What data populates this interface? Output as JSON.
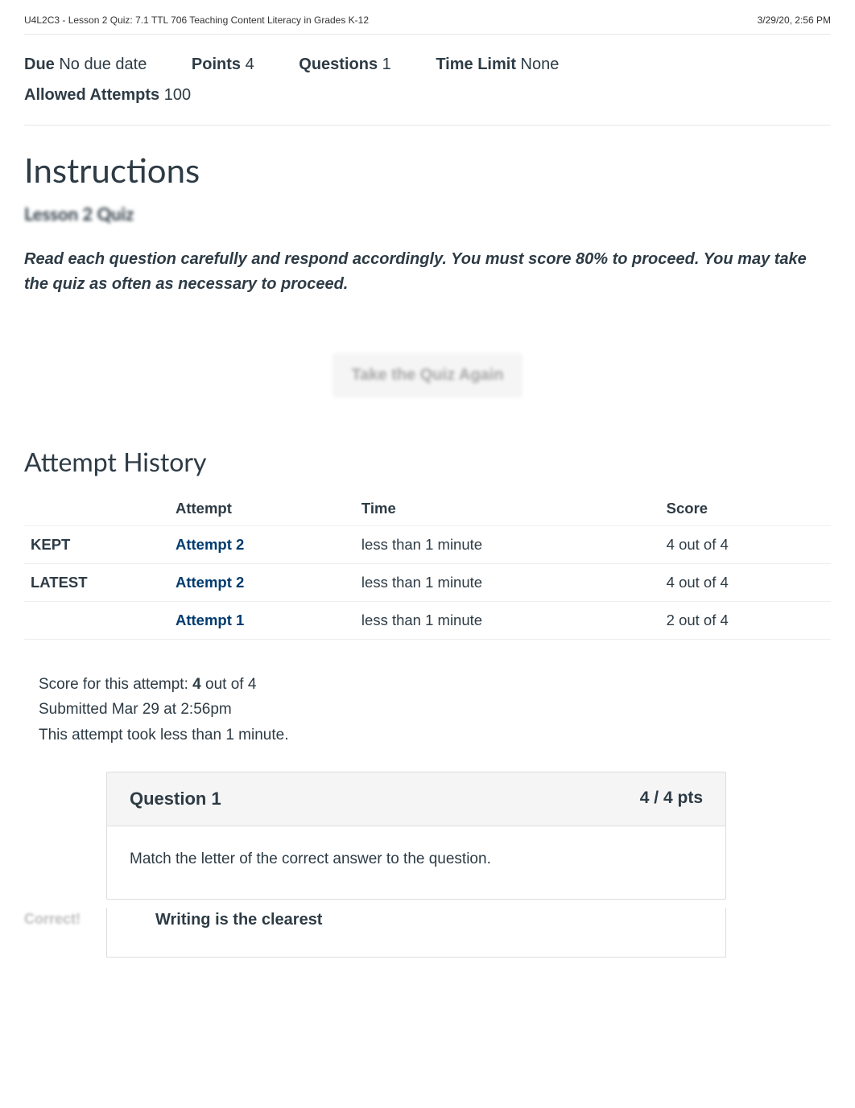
{
  "header": {
    "title": "U4L2C3 - Lesson 2 Quiz: 7.1 TTL 706 Teaching Content Literacy in Grades K-12",
    "timestamp": "3/29/20, 2:56 PM"
  },
  "meta": {
    "due_label": "Due",
    "due_value": "No due date",
    "points_label": "Points",
    "points_value": "4",
    "questions_label": "Questions",
    "questions_value": "1",
    "time_limit_label": "Time Limit",
    "time_limit_value": "None",
    "allowed_attempts_label": "Allowed Attempts",
    "allowed_attempts_value": "100"
  },
  "instructions": {
    "heading": "Instructions",
    "subheading": "Lesson 2 Quiz",
    "body": "Read each question carefully and respond accordingly.  You must score 80% to proceed.  You may take the quiz as often as necessary to proceed."
  },
  "take_again_label": "Take the Quiz Again",
  "history": {
    "heading": "Attempt History",
    "columns": {
      "attempt": "Attempt",
      "time": "Time",
      "score": "Score"
    },
    "rows": [
      {
        "status": "KEPT",
        "attempt": "Attempt 2",
        "time": "less than 1 minute",
        "score": "4 out of 4"
      },
      {
        "status": "LATEST",
        "attempt": "Attempt 2",
        "time": "less than 1 minute",
        "score": "4 out of 4"
      },
      {
        "status": "",
        "attempt": "Attempt 1",
        "time": "less than 1 minute",
        "score": "2 out of 4"
      }
    ]
  },
  "summary": {
    "score_prefix": "Score for this attempt: ",
    "score_bold": "4",
    "score_suffix": " out of 4",
    "submitted": "Submitted Mar 29 at 2:56pm",
    "duration": "This attempt took less than 1 minute."
  },
  "question": {
    "title": "Question 1",
    "pts": "4 / 4 pts",
    "prompt": "Match the letter of the correct answer to the question.",
    "correct_label": "Correct!",
    "answer_text": "Writing is the clearest"
  },
  "colors": {
    "link": "#003b6f",
    "text": "#2d3b45",
    "muted": "#bdbdbd",
    "border": "#dddddd",
    "bg_light": "#f5f5f5"
  }
}
